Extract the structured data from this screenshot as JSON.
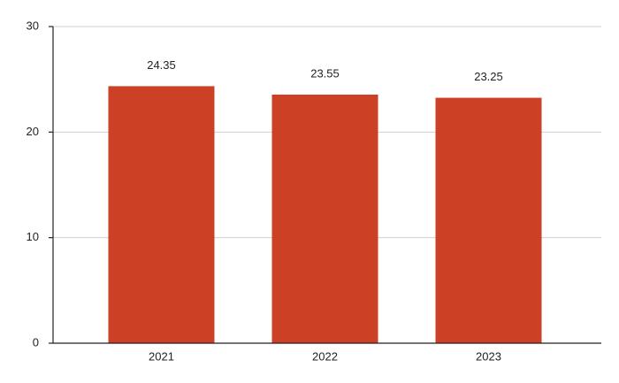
{
  "chart_data": {
    "type": "bar",
    "categories": [
      "2021",
      "2022",
      "2023"
    ],
    "values": [
      24.35,
      23.55,
      23.25
    ],
    "color": "#cc4125",
    "ylim": [
      0,
      30
    ],
    "yticks": [
      0,
      10,
      20,
      30
    ],
    "grid": true
  }
}
